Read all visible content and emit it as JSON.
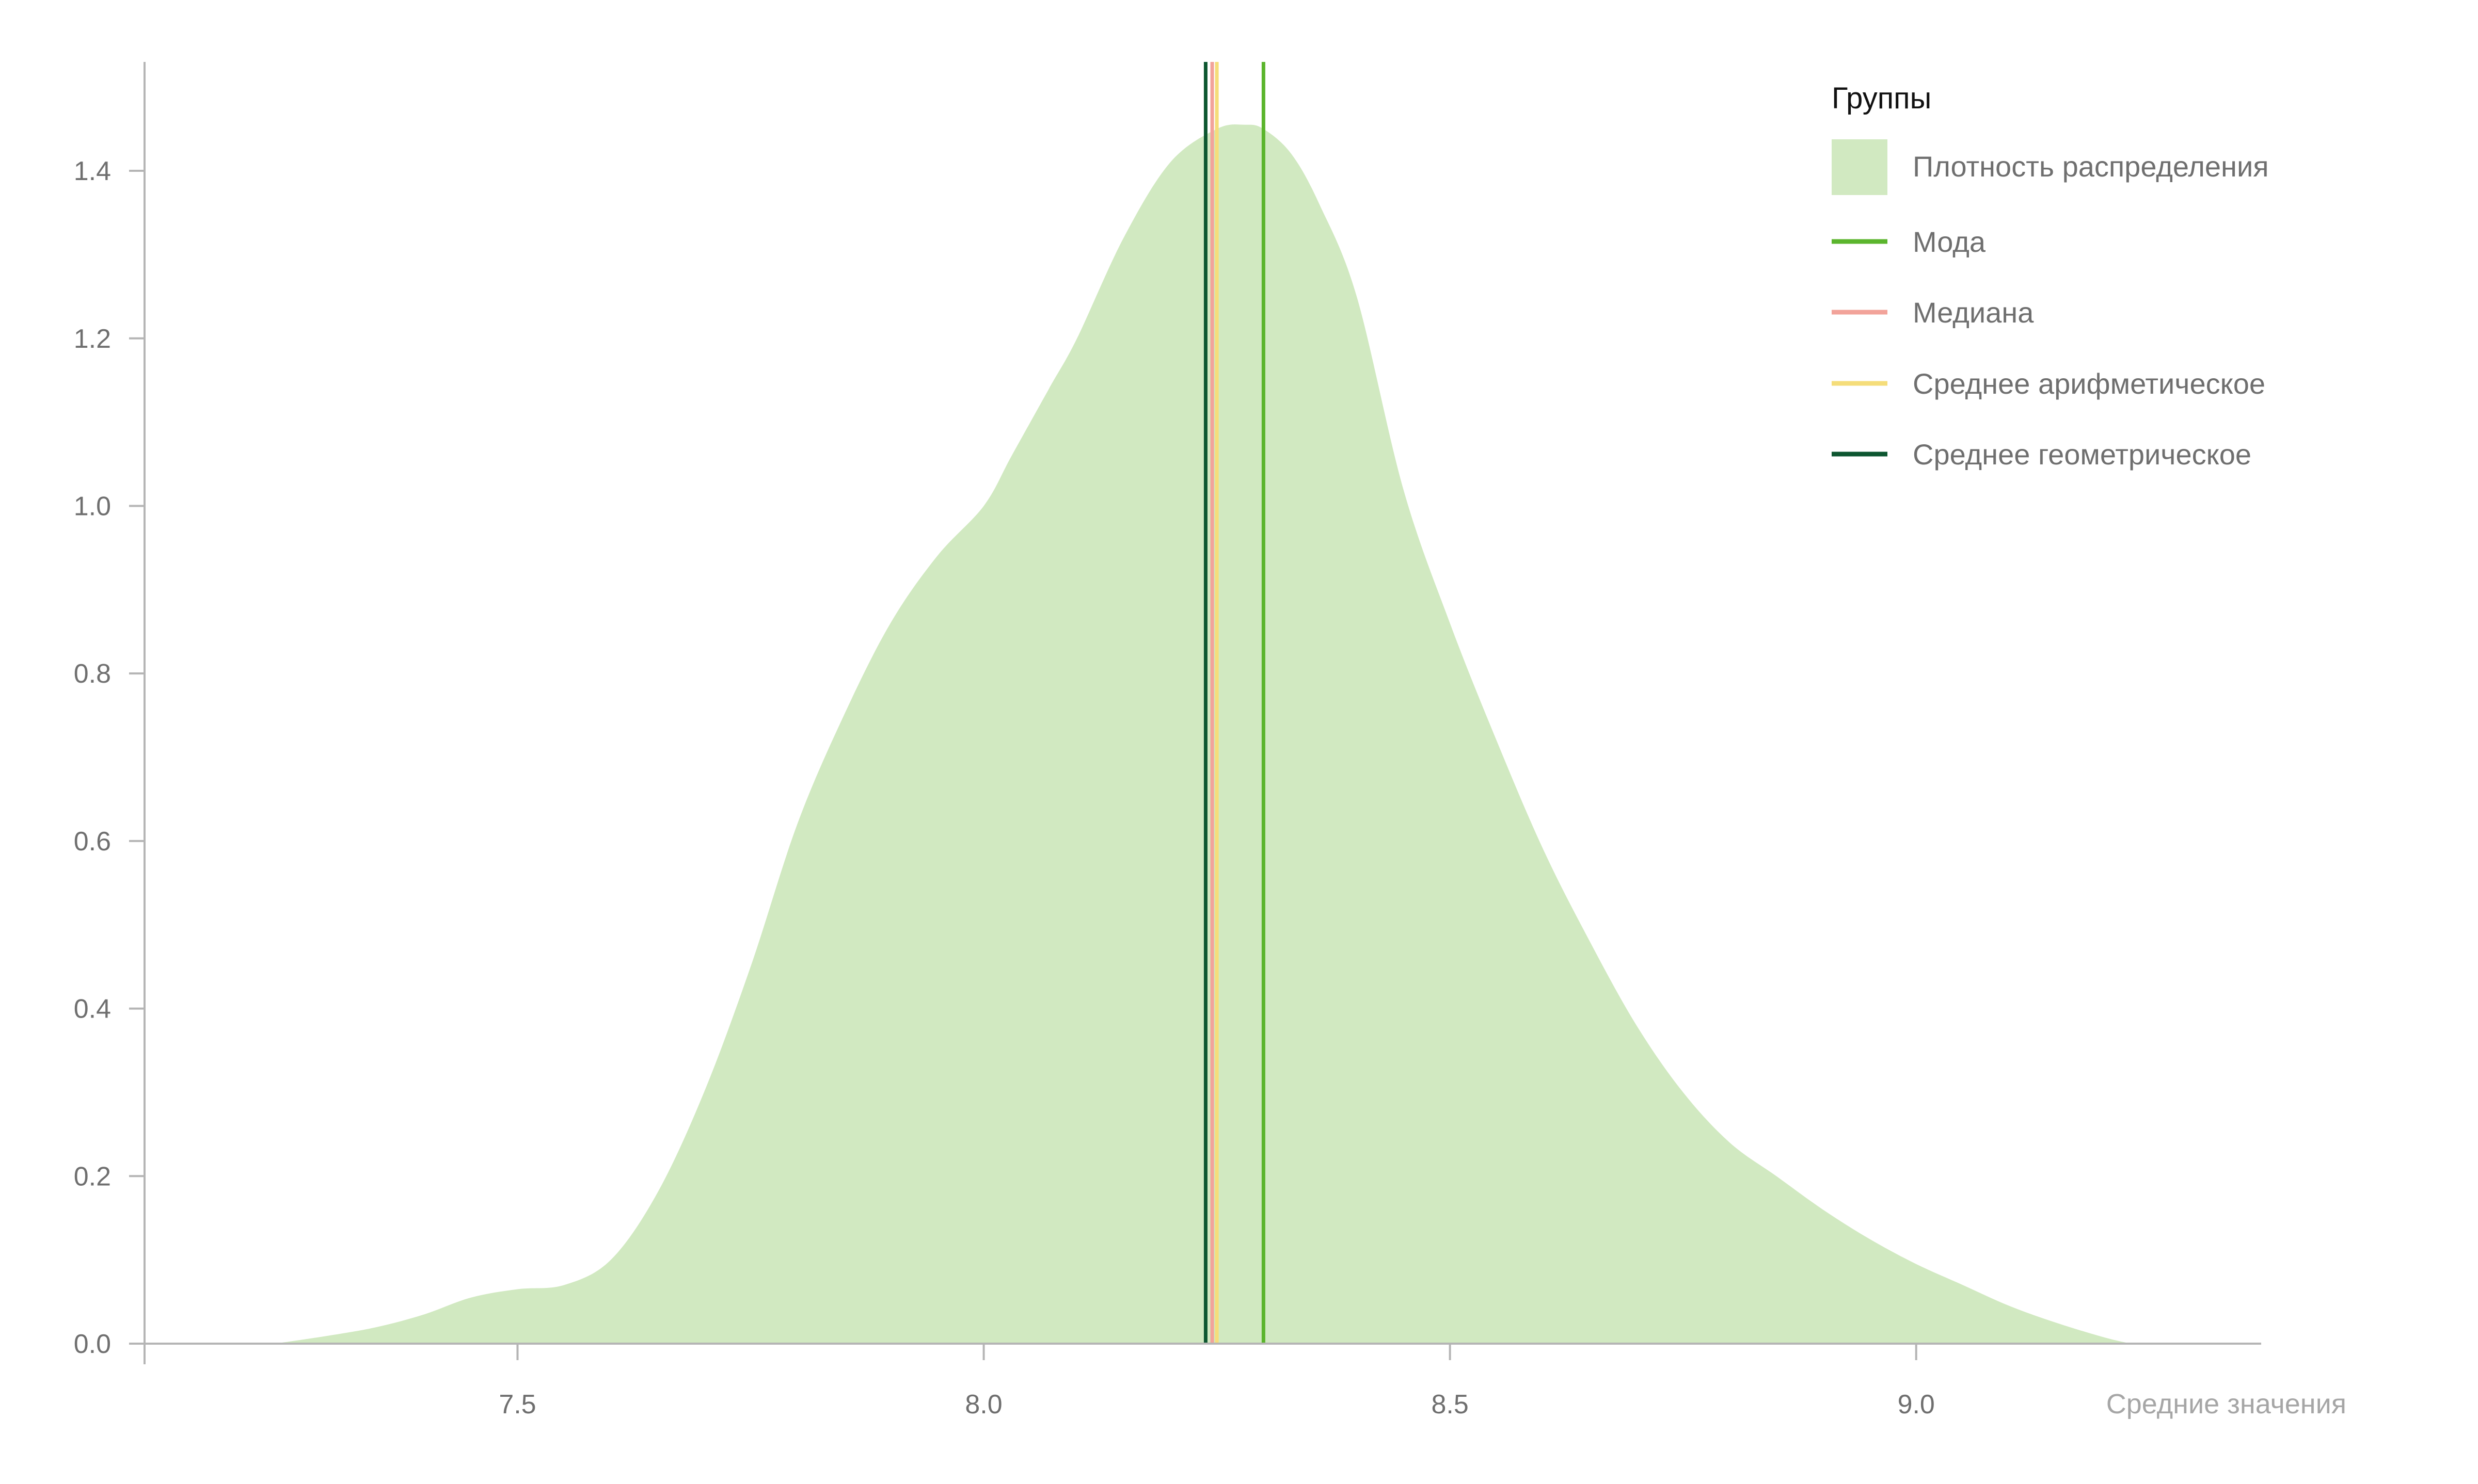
{
  "chart_data": {
    "type": "area",
    "x_ticks": [
      "7.5",
      "8.0",
      "8.5",
      "9.0"
    ],
    "x_tick_values": [
      7.5,
      8.0,
      8.5,
      9.0
    ],
    "y_ticks": [
      "0.0",
      "0.2",
      "0.4",
      "0.6",
      "0.8",
      "1.0",
      "1.2",
      "1.4"
    ],
    "y_tick_values": [
      0.0,
      0.2,
      0.4,
      0.6,
      0.8,
      1.0,
      1.2,
      1.4
    ],
    "xlabel": "Средние значения",
    "xlim": [
      7.1,
      9.37
    ],
    "ylim": [
      0.0,
      1.53
    ],
    "grid": false,
    "legend": {
      "title": "Группы",
      "placement": "top-right",
      "entries": [
        {
          "label": "Плотность распределения",
          "kind": "patch",
          "color": "#d1e9c1"
        },
        {
          "label": "Мода",
          "kind": "line",
          "color": "#5bb52d"
        },
        {
          "label": "Медиана",
          "kind": "line",
          "color": "#f2a39a"
        },
        {
          "label": "Среднее арифметическое",
          "kind": "line",
          "color": "#f5dd7a"
        },
        {
          "label": "Среднее геометрическое",
          "kind": "line",
          "color": "#0d5630"
        }
      ]
    },
    "density": {
      "color": "#d1e9c1",
      "x": [
        7.24,
        7.3,
        7.35,
        7.4,
        7.45,
        7.5,
        7.55,
        7.6,
        7.65,
        7.7,
        7.75,
        7.8,
        7.85,
        7.9,
        7.95,
        8.0,
        8.03,
        8.07,
        8.1,
        8.15,
        8.2,
        8.25,
        8.28,
        8.3,
        8.33,
        8.36,
        8.4,
        8.45,
        8.5,
        8.55,
        8.6,
        8.65,
        8.7,
        8.75,
        8.8,
        8.85,
        8.9,
        8.95,
        9.0,
        9.05,
        9.1,
        9.15,
        9.2,
        9.23
      ],
      "y": [
        0.0,
        0.01,
        0.02,
        0.035,
        0.055,
        0.065,
        0.07,
        0.1,
        0.18,
        0.3,
        0.45,
        0.62,
        0.75,
        0.86,
        0.94,
        1.0,
        1.06,
        1.14,
        1.2,
        1.32,
        1.41,
        1.45,
        1.455,
        1.45,
        1.42,
        1.36,
        1.25,
        1.02,
        0.86,
        0.72,
        0.59,
        0.48,
        0.38,
        0.3,
        0.24,
        0.2,
        0.16,
        0.125,
        0.095,
        0.07,
        0.045,
        0.025,
        0.008,
        0.0
      ]
    },
    "vlines": [
      {
        "name": "Мода",
        "x": 8.3,
        "color": "#5bb52d"
      },
      {
        "name": "Медиана",
        "x": 8.245,
        "color": "#f2a39a"
      },
      {
        "name": "Среднее арифметическое",
        "x": 8.25,
        "color": "#f5dd7a"
      },
      {
        "name": "Среднее геометрическое",
        "x": 8.238,
        "color": "#0d5630"
      }
    ]
  }
}
